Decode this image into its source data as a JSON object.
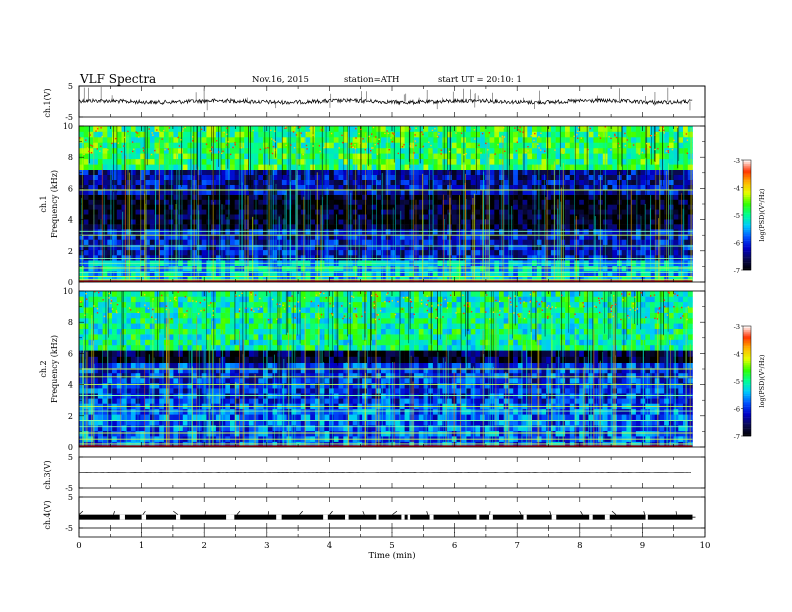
{
  "header": {
    "title": "VLF  Spectra",
    "date": "Nov.16, 2015",
    "station": "station=ATH",
    "start": "start  UT  =   20:10: 1"
  },
  "colors": {
    "colormap": [
      "#000000",
      "#0a0a50",
      "#0000c8",
      "#0050ff",
      "#00c8ff",
      "#00ff96",
      "#32ff00",
      "#e6ff00",
      "#ffb400",
      "#ff3200",
      "#ffffff"
    ]
  },
  "chart_data": [
    {
      "type": "line",
      "panel": "ch1-waveform",
      "ylabel": "ch.1(V)",
      "yticks": [
        "5",
        "-5"
      ],
      "ylim": [
        -5,
        5
      ],
      "xlim": [
        0,
        10
      ],
      "x_extent_min": [
        0,
        9.8
      ],
      "baseline_value": 0,
      "description_level": "noisy trace near 0 V with sparse positive spikes"
    },
    {
      "type": "heatmap",
      "panel": "ch1-spectrogram",
      "ylabel": "Frequency  (kHz)",
      "channel_label": "ch.1",
      "yticks": [
        "0",
        "2",
        "4",
        "6",
        "8",
        "10"
      ],
      "ylim": [
        0,
        10
      ],
      "xlim": [
        0,
        10
      ],
      "data_extent_min": [
        0,
        9.8
      ],
      "colorbar": {
        "label": "log(PSD)(V²/Hz)",
        "ticks": [
          "-3",
          "-4",
          "-5",
          "-6",
          "-7"
        ],
        "range": [
          -7,
          -3
        ]
      },
      "bands_khz": [
        {
          "from": 0,
          "to": 1.4,
          "level": -5.4
        },
        {
          "from": 1.4,
          "to": 3.4,
          "level": -6.2
        },
        {
          "from": 3.4,
          "to": 5.6,
          "level": -6.9
        },
        {
          "from": 5.6,
          "to": 7.2,
          "level": -6.3
        },
        {
          "from": 7.2,
          "to": 10,
          "level": -4.8
        }
      ],
      "lines_khz": [
        0.15,
        0.35,
        0.6,
        0.9,
        1.2,
        1.5,
        2.3,
        3.0,
        3.25,
        5.9
      ]
    },
    {
      "type": "heatmap",
      "panel": "ch2-spectrogram",
      "ylabel": "Frequency  (kHz)",
      "channel_label": "ch.2",
      "yticks": [
        "0",
        "2",
        "4",
        "6",
        "8",
        "10"
      ],
      "ylim": [
        0,
        10
      ],
      "xlim": [
        0,
        10
      ],
      "data_extent_min": [
        0,
        9.8
      ],
      "colorbar": {
        "label": "log(PSD)(V²/Hz)",
        "ticks": [
          "-3",
          "-4",
          "-5",
          "-6",
          "-7"
        ],
        "range": [
          -7,
          -3
        ]
      },
      "bands_khz": [
        {
          "from": 0,
          "to": 2.8,
          "level": -5.8
        },
        {
          "from": 2.8,
          "to": 5.4,
          "level": -6.0
        },
        {
          "from": 5.4,
          "to": 6.2,
          "level": -6.8
        },
        {
          "from": 6.2,
          "to": 10,
          "level": -5.0
        }
      ],
      "lines_khz": [
        0.2,
        0.5,
        0.9,
        1.3,
        1.7,
        2.3,
        2.6,
        3.3,
        4.0,
        4.5,
        5.0
      ]
    },
    {
      "type": "line",
      "panel": "ch3-waveform",
      "ylabel": "ch.3(V)",
      "yticks": [
        "5",
        "-5"
      ],
      "ylim": [
        -5,
        5
      ],
      "xlim": [
        0,
        10
      ],
      "x_extent_min": [
        0,
        9.8
      ],
      "baseline_value": 0
    },
    {
      "type": "line",
      "panel": "ch4-waveform",
      "ylabel": "ch.4(V)",
      "yticks": [
        "5",
        "-5"
      ],
      "ylim": [
        -5,
        5
      ],
      "xlim": [
        0,
        10
      ],
      "x_extent_min": [
        0,
        9.8
      ],
      "baseline_value": -1.5
    }
  ],
  "xaxis": {
    "label": "Time  (min)",
    "ticks": [
      "0",
      "1",
      "2",
      "3",
      "4",
      "5",
      "6",
      "7",
      "8",
      "9",
      "10"
    ],
    "range": [
      0,
      10
    ]
  }
}
